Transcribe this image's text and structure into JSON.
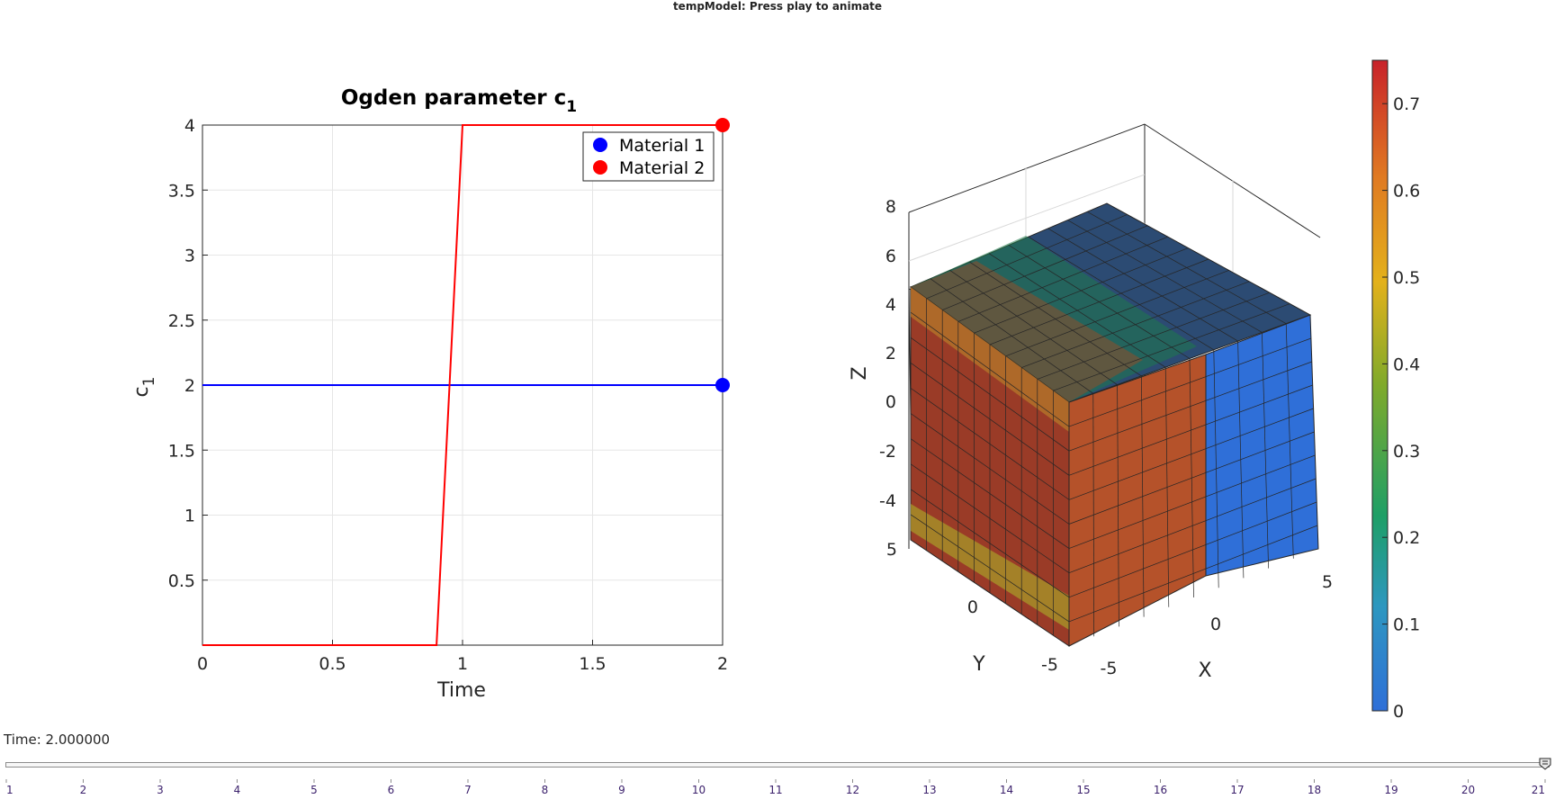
{
  "window": {
    "title": "tempModel: Press play to animate"
  },
  "plot": {
    "title_main": "Ogden parameter c",
    "title_sub": "1",
    "xlabel": "Time",
    "ylabel_main": "c",
    "ylabel_sub": "1",
    "x_ticks": [
      "0",
      "0.5",
      "1",
      "1.5",
      "2"
    ],
    "y_ticks": [
      "0.5",
      "1",
      "1.5",
      "2",
      "2.5",
      "3",
      "3.5",
      "4"
    ],
    "legend": [
      {
        "label": "Material 1",
        "color": "#0000ff"
      },
      {
        "label": "Material 2",
        "color": "#ff0000"
      }
    ]
  },
  "chart_data": {
    "type": "line",
    "xlim": [
      0,
      2
    ],
    "ylim": [
      0,
      4
    ],
    "grid": true,
    "legend_position": "top-right",
    "series": [
      {
        "name": "Material 1",
        "color": "#0000ff",
        "x": [
          0,
          2
        ],
        "y": [
          2,
          2
        ],
        "marker_at_end": true
      },
      {
        "name": "Material 2",
        "color": "#ff0000",
        "x": [
          0,
          0.9,
          1.0,
          2.0
        ],
        "y": [
          0,
          0,
          4,
          4
        ],
        "marker_at_end": true
      }
    ]
  },
  "model3d": {
    "xlabel": "X",
    "ylabel": "Y",
    "zlabel": "Z",
    "z_ticks": [
      "8",
      "6",
      "4",
      "2",
      "0",
      "-2",
      "-4"
    ],
    "y_ticks": [
      "5",
      "0",
      "-5"
    ],
    "x_ticks": [
      "-5",
      "0",
      "5"
    ]
  },
  "colorbar": {
    "ticks": [
      "0.7",
      "0.6",
      "0.5",
      "0.4",
      "0.3",
      "0.2",
      "0.1",
      "0"
    ],
    "range": [
      0,
      0.75
    ],
    "colors": [
      "#2f6fd8",
      "#2d97c0",
      "#1e9f66",
      "#7faa2b",
      "#e3b11b",
      "#e07a22",
      "#c8222a"
    ]
  },
  "animation": {
    "time_label": "Time: 2.000000",
    "slider_ticks": [
      "1",
      "2",
      "3",
      "4",
      "5",
      "6",
      "7",
      "8",
      "9",
      "10",
      "11",
      "12",
      "13",
      "14",
      "15",
      "16",
      "17",
      "18",
      "19",
      "20",
      "21"
    ],
    "slider_value": 21
  }
}
